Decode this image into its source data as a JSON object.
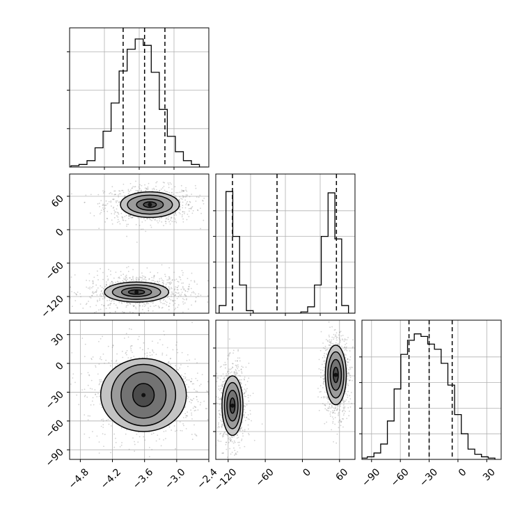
{
  "chart_data": [
    {
      "type": "histogram",
      "panel": "p0-hist",
      "xlim": [
        -5.0,
        -2.4
      ],
      "bins_x": [
        -4.9,
        -4.75,
        -4.6,
        -4.45,
        -4.3,
        -4.15,
        -4.0,
        -3.85,
        -3.7,
        -3.55,
        -3.4,
        -3.25,
        -3.1,
        -2.95,
        -2.8,
        -2.65,
        -2.5
      ],
      "counts": [
        0.01,
        0.02,
        0.05,
        0.15,
        0.28,
        0.5,
        0.75,
        0.92,
        1.0,
        0.95,
        0.74,
        0.45,
        0.24,
        0.12,
        0.05,
        0.02,
        0.0
      ],
      "quantiles": [
        -4.0,
        -3.6,
        -3.22
      ],
      "xticks": [],
      "yticks_rel": [
        0.3,
        0.6,
        0.9
      ]
    },
    {
      "type": "histogram",
      "panel": "p1-hist",
      "xlim": [
        -140,
        85
      ],
      "bins_x": [
        -140,
        -129,
        -118,
        -107,
        -96,
        -85,
        -74,
        -63,
        -52,
        -41,
        -30,
        -19,
        -8,
        3,
        14,
        25,
        36,
        47,
        58,
        69,
        80
      ],
      "counts": [
        0.0,
        0.06,
        0.95,
        0.6,
        0.22,
        0.02,
        0.0,
        0.0,
        0.0,
        0.0,
        0.0,
        0.0,
        0.0,
        0.01,
        0.05,
        0.22,
        0.6,
        0.94,
        0.58,
        0.06,
        0.0
      ],
      "quantiles": [
        -113,
        -41,
        55
      ],
      "xticks": [],
      "yticks_rel": [
        0.2,
        0.4,
        0.6,
        0.8
      ]
    },
    {
      "type": "histogram",
      "panel": "p2-hist",
      "xlim": [
        -100,
        45
      ],
      "bins_x": [
        -98,
        -91,
        -84,
        -77,
        -70,
        -63,
        -56,
        -49,
        -42,
        -35,
        -28,
        -21,
        -14,
        -7,
        0,
        7,
        14,
        21,
        28,
        35
      ],
      "counts": [
        0.01,
        0.02,
        0.05,
        0.12,
        0.3,
        0.55,
        0.82,
        0.93,
        0.98,
        0.96,
        0.9,
        0.86,
        0.75,
        0.58,
        0.35,
        0.2,
        0.08,
        0.04,
        0.02,
        0.01
      ],
      "quantiles": [
        -51,
        -30,
        -6
      ],
      "xticks": [
        -90,
        -60,
        -30,
        0,
        30
      ],
      "xtick_labels": [
        "−90",
        "−60",
        "−30",
        "0",
        "30"
      ],
      "yticks_rel": [
        0.2,
        0.4,
        0.6,
        0.8
      ]
    },
    {
      "type": "scatter-contour",
      "panel": "p10",
      "xlim": [
        -5.0,
        -2.4
      ],
      "ylim": [
        -150,
        100
      ],
      "yticks": [
        60,
        0,
        -60,
        -120
      ],
      "ytick_labels": [
        "60",
        "0",
        "−60",
        "−120"
      ],
      "clusters": [
        {
          "cx": -3.5,
          "cy": 45,
          "sx": 0.3,
          "sy": 12
        },
        {
          "cx": -3.7,
          "cy": -112,
          "sx": 0.35,
          "sy": 12
        }
      ],
      "contours": [
        {
          "cx": -3.5,
          "cy": 45,
          "rx": [
            0.12,
            0.25,
            0.42,
            0.55
          ],
          "ry": [
            5,
            10,
            17,
            23
          ]
        },
        {
          "cx": -3.75,
          "cy": -112,
          "rx": [
            0.15,
            0.28,
            0.45,
            0.6
          ],
          "ry": [
            4,
            8,
            13,
            18
          ]
        }
      ]
    },
    {
      "type": "scatter-contour",
      "panel": "p20",
      "xlim": [
        -5.0,
        -2.4
      ],
      "ylim": [
        -100,
        45
      ],
      "xticks": [
        -4.8,
        -4.2,
        -3.6,
        -3.0,
        -2.4
      ],
      "xtick_labels": [
        "−4.8",
        "−4.2",
        "−3.6",
        "−3.0",
        "−2.4"
      ],
      "yticks": [
        30,
        0,
        -30,
        -60,
        -90
      ],
      "ytick_labels": [
        "30",
        "0",
        "−30",
        "−60",
        "−90"
      ],
      "clusters": [
        {
          "cx": -3.6,
          "cy": -30,
          "sx": 0.4,
          "sy": 19
        }
      ],
      "contours": [
        {
          "cx": -3.62,
          "cy": -33,
          "rx": [
            0.2,
            0.42,
            0.6,
            0.8
          ],
          "ry": [
            12,
            24,
            32,
            38
          ]
        }
      ]
    },
    {
      "type": "scatter-contour",
      "panel": "p21",
      "xlim": [
        -140,
        85
      ],
      "ylim": [
        -100,
        45
      ],
      "xticks": [
        -120,
        -60,
        0,
        60
      ],
      "xtick_labels": [
        "−120",
        "−60",
        "0",
        "60"
      ],
      "clusters": [
        {
          "cx": -113,
          "cy": -44,
          "sx": 8,
          "sy": 15
        },
        {
          "cx": 54,
          "cy": -12,
          "sx": 8,
          "sy": 15
        }
      ],
      "contours": [
        {
          "cx": -113,
          "cy": -44,
          "rx": [
            4,
            9,
            13,
            17
          ],
          "ry": [
            8,
            16,
            24,
            31
          ]
        },
        {
          "cx": 54,
          "cy": -12,
          "rx": [
            4,
            9,
            13,
            17
          ],
          "ry": [
            8,
            16,
            24,
            31
          ]
        }
      ]
    }
  ]
}
